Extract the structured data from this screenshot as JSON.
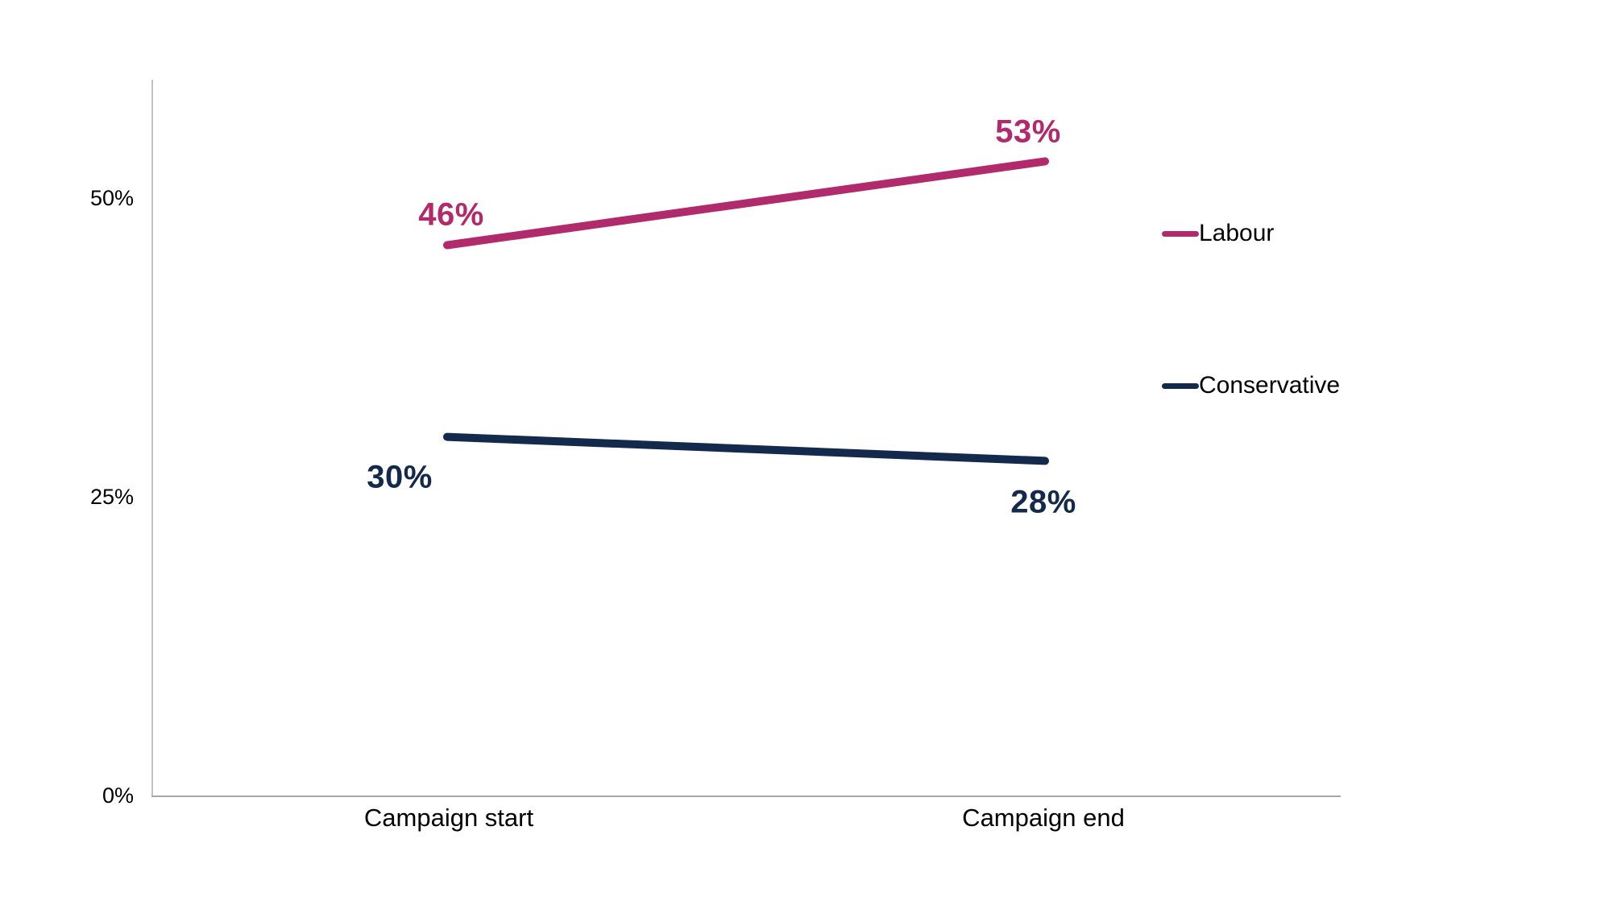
{
  "chart_data": {
    "type": "line",
    "title": "",
    "xlabel": "",
    "ylabel": "",
    "categories": [
      "Campaign start",
      "Campaign end"
    ],
    "series": [
      {
        "name": "Labour",
        "values": [
          46,
          53
        ],
        "labels": [
          "46%",
          "53%"
        ],
        "color": "#b12a6b"
      },
      {
        "name": "Conservative",
        "values": [
          30,
          28
        ],
        "labels": [
          "30%",
          "28%"
        ],
        "color": "#132a4d"
      }
    ],
    "y_axis": {
      "min": 0,
      "max": 60,
      "ticks": [
        "0%",
        "25%",
        "50%"
      ],
      "tick_values": [
        0,
        25,
        50
      ]
    },
    "x_axis": {
      "ticks": [
        "Campaign start",
        "Campaign end"
      ]
    },
    "legend": {
      "position": "right",
      "entries": [
        "Labour",
        "Conservative"
      ]
    },
    "grid": false,
    "background_color": "#ffffff",
    "axis_color": "#a6a6a6",
    "text_color": "#000000"
  }
}
